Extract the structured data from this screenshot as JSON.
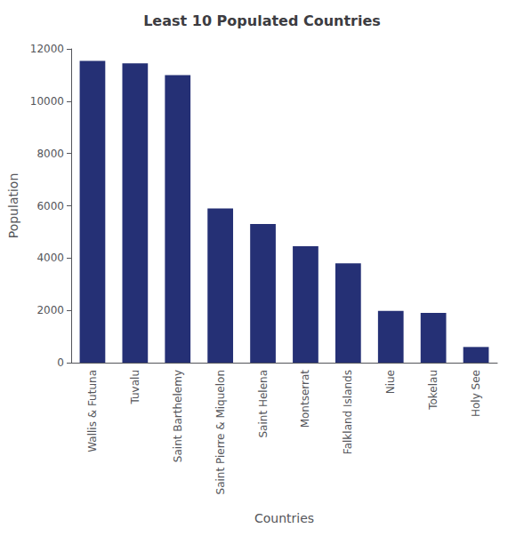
{
  "chart_data": {
    "type": "bar",
    "title": "Least 10 Populated Countries",
    "xlabel": "Countries",
    "ylabel": "Population",
    "categories": [
      "Wallis & Futuna",
      "Tuvalu",
      "Saint Barthelemy",
      "Saint Pierre & Miquelon",
      "Saint Helena",
      "Montserrat",
      "Falkland Islands",
      "Niue",
      "Tokelau",
      "Holy See"
    ],
    "values": [
      11540,
      11450,
      11000,
      5900,
      5300,
      4450,
      3800,
      1980,
      1900,
      600
    ],
    "color": "#253075",
    "ylim": [
      0,
      12000
    ],
    "yticks": [
      0,
      2000,
      4000,
      6000,
      8000,
      10000,
      12000
    ],
    "grid": false
  }
}
